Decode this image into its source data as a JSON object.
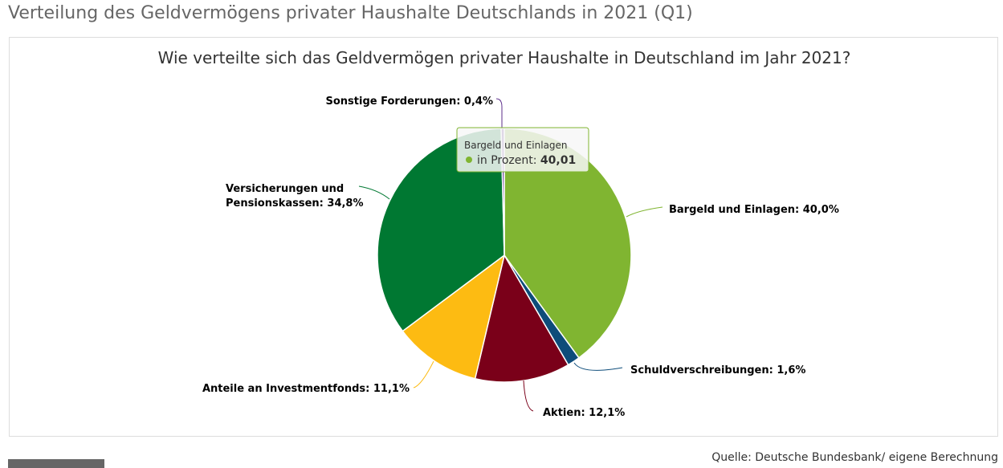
{
  "page_title": "Verteilung des Geldvermögens privater Haushalte Deutschlands in 2021 (Q1)",
  "source": "Quelle: Deutsche Bundesbank/ eigene Berechnung",
  "chart_data": {
    "type": "pie",
    "title": "Wie verteilte sich das Geldvermögen privater Haushalte in Deutschland im Jahr 2021?",
    "start_angle_deg": 0,
    "slices": [
      {
        "name": "Bargeld und Einlagen",
        "value": 40.0,
        "label": "Bargeld und Einlagen: 40,0%",
        "color": "#80b531"
      },
      {
        "name": "Schuldverschreibungen",
        "value": 1.6,
        "label": "Schuldverschreibungen: 1,6%",
        "color": "#0d4c7a"
      },
      {
        "name": "Aktien",
        "value": 12.1,
        "label": "Aktien: 12,1%",
        "color": "#7a0019"
      },
      {
        "name": "Anteile an Investmentfonds",
        "value": 11.1,
        "label": "Anteile an Investmentfonds: 11,1%",
        "color": "#fdbb12"
      },
      {
        "name": "Versicherungen und Pensionskassen",
        "value": 34.8,
        "label_lines": [
          "Versicherungen und",
          "Pensionskassen: 34,8%"
        ],
        "color": "#007832"
      },
      {
        "name": "Sonstige Forderungen",
        "value": 0.4,
        "label": "Sonstige Forderungen: 0,4%",
        "color": "#5b2d8a"
      }
    ],
    "tooltip": {
      "title": "Bargeld und Einlagen",
      "series": "in Prozent: ",
      "value": "40,01",
      "color": "#80b531"
    }
  }
}
